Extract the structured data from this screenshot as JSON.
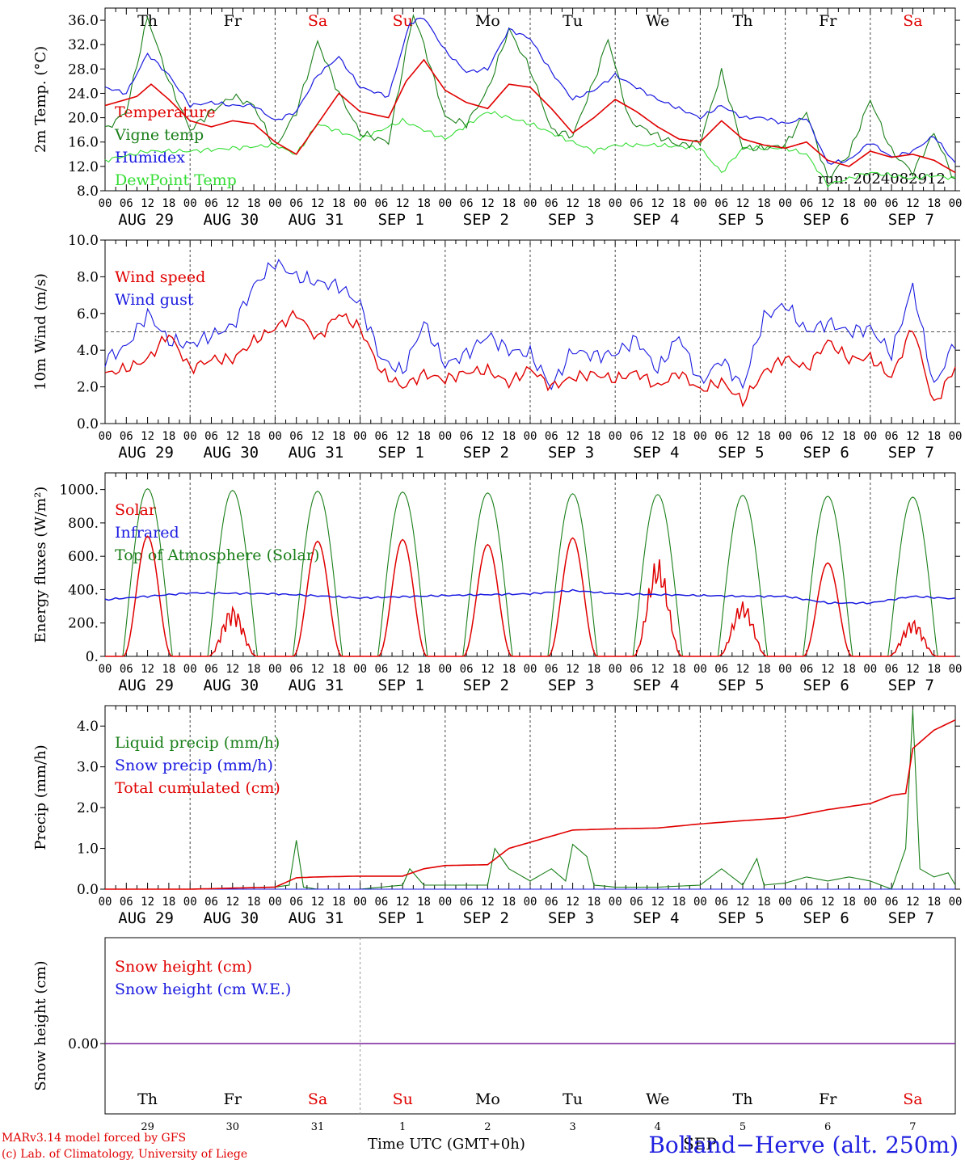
{
  "colors": {
    "red": "#e00000",
    "green": "#1a7f1a",
    "blue": "#1a1ae0",
    "lightgreen": "#33dd33",
    "purple": "#7a1f9a",
    "dash": "#555555"
  },
  "days": [
    "Th",
    "Fr",
    "Sa",
    "Su",
    "Mo",
    "Tu",
    "We",
    "Th",
    "Fr",
    "Sa"
  ],
  "weekend_days": [
    "Sa",
    "Su"
  ],
  "dates": [
    "AUG 29",
    "AUG 30",
    "AUG 31",
    "SEP  1",
    "SEP  2",
    "SEP  3",
    "SEP  4",
    "SEP  5",
    "SEP  6",
    "SEP  7"
  ],
  "day_numbers": [
    "29",
    "30",
    "31",
    "1",
    "2",
    "3",
    "4",
    "5",
    "6",
    "7"
  ],
  "hour_labels": [
    "00",
    "06",
    "12",
    "18"
  ],
  "final_hour_label": "00",
  "panels": [
    {
      "id": "temperature",
      "ylabel": "2m Temp. (°C)",
      "yticks": [
        "8.0",
        "12.0",
        "16.0",
        "20.0",
        "24.0",
        "28.0",
        "32.0",
        "36.0"
      ],
      "ylim": [
        8,
        38
      ],
      "legend": [
        {
          "label": "Temperature",
          "color": "red"
        },
        {
          "label": "Vigne temp",
          "color": "green"
        },
        {
          "label": "Humidex",
          "color": "blue"
        },
        {
          "label": "DewPoint Temp",
          "color": "lightgreen"
        }
      ],
      "note": "run: 2024082912"
    },
    {
      "id": "wind",
      "ylabel": "10m Wind (m/s)",
      "yticks": [
        "0.0",
        "2.0",
        "4.0",
        "6.0",
        "8.0",
        "10.0"
      ],
      "ylim": [
        0,
        10
      ],
      "legend": [
        {
          "label": "Wind speed",
          "color": "red"
        },
        {
          "label": "Wind gust",
          "color": "blue"
        }
      ],
      "hline": 5
    },
    {
      "id": "energy",
      "ylabel": "Energy fluxes (W/m²)",
      "yticks": [
        "0.",
        "200.",
        "400.",
        "600.",
        "800.",
        "1000."
      ],
      "ylim": [
        0,
        1100
      ],
      "legend": [
        {
          "label": "Solar",
          "color": "red"
        },
        {
          "label": "Infrared",
          "color": "blue"
        },
        {
          "label": "Top of Atmosphere (Solar)",
          "color": "green"
        }
      ]
    },
    {
      "id": "precip",
      "ylabel": "Precip (mm/h)",
      "yticks": [
        "0.0",
        "1.0",
        "2.0",
        "3.0",
        "4.0"
      ],
      "ylim": [
        0,
        4.5
      ],
      "legend": [
        {
          "label": "Liquid precip (mm/h)",
          "color": "green"
        },
        {
          "label": "Snow precip (mm/h)",
          "color": "blue"
        },
        {
          "label": "Total cumulated (cm)",
          "color": "red"
        }
      ]
    },
    {
      "id": "snow",
      "ylabel": "Snow height (cm)",
      "yticks": [
        "0.00"
      ],
      "legend": [
        {
          "label": "Snow height (cm)",
          "color": "red"
        },
        {
          "label": "Snow height (cm W.E.)",
          "color": "blue"
        }
      ]
    }
  ],
  "footer": {
    "model": "MARv3.14 model forced by GFS",
    "lab": "(c) Lab. of Climatology, University of Liege",
    "xlabel": "Time UTC (GMT+0h)",
    "month": "SEP",
    "station": "Bolland−Herve (alt. 250m)"
  },
  "chart_data": [
    {
      "type": "line",
      "title": "",
      "ylabel": "2m Temp. (°C)",
      "ylim": [
        8,
        38
      ],
      "x_unit": "hours since AUG 29 00 UTC",
      "series": [
        {
          "name": "Temperature",
          "x": [
            0,
            9,
            13,
            18,
            24,
            30,
            36,
            42,
            48,
            54,
            60,
            66,
            72,
            80,
            85,
            90,
            96,
            102,
            108,
            114,
            120,
            126,
            132,
            138,
            144,
            150,
            156,
            162,
            168,
            174,
            180,
            186,
            192,
            198,
            204,
            210,
            216,
            222,
            228,
            234,
            240
          ],
          "values": [
            22,
            23.5,
            25.5,
            23,
            19.5,
            18.5,
            19.5,
            19,
            16,
            14,
            19,
            24,
            21,
            20,
            26,
            29.5,
            24.5,
            22.5,
            21.5,
            25.5,
            25,
            21.5,
            17.5,
            20,
            23,
            21,
            18.5,
            16.5,
            16,
            19.5,
            16.5,
            15.5,
            15,
            16,
            13,
            12,
            14.5,
            13.5,
            14,
            13,
            11
          ]
        },
        {
          "name": "Vigne temp",
          "x": [
            0,
            6,
            12,
            18,
            24,
            30,
            36,
            42,
            48,
            54,
            60,
            66,
            72,
            80,
            87,
            90,
            96,
            102,
            108,
            114,
            120,
            126,
            132,
            138,
            142,
            148,
            156,
            162,
            168,
            174,
            180,
            186,
            192,
            198,
            204,
            210,
            216,
            222,
            228,
            234,
            240
          ],
          "values": [
            18,
            21,
            36.5,
            26,
            18,
            21,
            23.5,
            22,
            15,
            21,
            32.5,
            24,
            17.5,
            16,
            37,
            32,
            20,
            19,
            24.5,
            34.5,
            28,
            18,
            17,
            26,
            33,
            19.5,
            17,
            15.5,
            16,
            27.5,
            15,
            15,
            15.5,
            21,
            10,
            14,
            23,
            14.5,
            11,
            17.5,
            9.5
          ]
        },
        {
          "name": "Humidex",
          "x": [
            0,
            6,
            12,
            18,
            24,
            30,
            36,
            42,
            48,
            54,
            60,
            66,
            72,
            80,
            86,
            90,
            96,
            102,
            108,
            114,
            120,
            126,
            132,
            138,
            144,
            150,
            156,
            162,
            168,
            174,
            180,
            186,
            192,
            198,
            204,
            210,
            216,
            222,
            228,
            234,
            240
          ],
          "values": [
            25,
            24,
            30.5,
            27,
            22,
            22.5,
            22,
            22,
            19.5,
            21,
            27,
            30,
            25,
            23.5,
            35.5,
            36.5,
            31,
            27.5,
            28,
            34.5,
            33,
            27.5,
            23,
            24.5,
            27,
            25,
            23,
            21.5,
            20,
            22,
            20,
            20,
            19,
            20,
            12.5,
            13,
            16,
            13.5,
            14.5,
            17,
            12.5
          ]
        },
        {
          "name": "DewPoint Temp",
          "x": [
            0,
            12,
            24,
            36,
            48,
            54,
            60,
            72,
            84,
            96,
            108,
            120,
            132,
            138,
            144,
            156,
            168,
            174,
            180,
            192,
            198,
            204,
            210,
            216,
            222,
            228,
            234,
            240
          ],
          "values": [
            13,
            14.5,
            14.5,
            15,
            15.5,
            14,
            19,
            16.5,
            19.5,
            16.5,
            21,
            19,
            16,
            14.5,
            15.5,
            15.5,
            15,
            11,
            15,
            15,
            14,
            9,
            10,
            11,
            10.5,
            10,
            10.5,
            10
          ]
        }
      ]
    },
    {
      "type": "line",
      "title": "",
      "ylabel": "10m Wind (m/s)",
      "ylim": [
        0,
        10
      ],
      "x_unit": "hours since AUG 29 00 UTC",
      "series": [
        {
          "name": "Wind speed",
          "x": [
            0,
            6,
            12,
            18,
            24,
            30,
            36,
            42,
            48,
            54,
            60,
            66,
            72,
            78,
            84,
            90,
            96,
            102,
            108,
            114,
            120,
            126,
            132,
            138,
            144,
            150,
            156,
            162,
            168,
            174,
            180,
            186,
            192,
            198,
            204,
            210,
            216,
            222,
            228,
            234,
            240
          ],
          "values": [
            2.7,
            3.0,
            3.5,
            4.9,
            3.0,
            3.5,
            3.5,
            4.5,
            5.2,
            6.0,
            4.6,
            6.0,
            5.2,
            2.8,
            2.0,
            2.7,
            2.4,
            2.8,
            2.9,
            2.2,
            3.0,
            2.0,
            2.5,
            2.7,
            2.4,
            2.8,
            2.0,
            2.8,
            1.8,
            2.3,
            1.2,
            2.8,
            3.6,
            3.0,
            4.5,
            3.5,
            3.6,
            2.5,
            5.3,
            1.0,
            3.1
          ]
        },
        {
          "name": "Wind gust",
          "x": [
            0,
            6,
            12,
            18,
            24,
            30,
            36,
            42,
            48,
            54,
            60,
            66,
            72,
            78,
            84,
            90,
            96,
            102,
            108,
            114,
            120,
            126,
            132,
            138,
            144,
            150,
            156,
            162,
            168,
            174,
            180,
            186,
            192,
            198,
            204,
            210,
            216,
            222,
            228,
            234,
            240
          ],
          "values": [
            3.5,
            4.2,
            6.0,
            4.5,
            4.3,
            4.8,
            5.3,
            7.5,
            8.8,
            8.0,
            7.7,
            7.5,
            6.5,
            3.5,
            2.8,
            5.5,
            3.2,
            3.8,
            4.8,
            4.0,
            3.8,
            2.0,
            4.0,
            3.7,
            3.8,
            4.6,
            2.9,
            4.8,
            2.2,
            3.5,
            2.0,
            5.8,
            6.5,
            5.0,
            5.5,
            5.0,
            5.2,
            3.8,
            7.5,
            2.0,
            4.5
          ]
        }
      ]
    },
    {
      "type": "line",
      "title": "",
      "ylabel": "Energy fluxes (W/m²)",
      "ylim": [
        0,
        1100
      ],
      "x_unit": "hours since AUG 29 00 UTC",
      "series": [
        {
          "name": "Solar",
          "day_peaks": [
            720,
            300,
            690,
            700,
            670,
            710,
            590,
            330,
            560,
            220
          ]
        },
        {
          "name": "Infrared",
          "x": [
            0,
            24,
            48,
            72,
            96,
            120,
            132,
            144,
            168,
            180,
            192,
            204,
            216,
            228,
            240
          ],
          "values": [
            340,
            380,
            375,
            350,
            365,
            375,
            395,
            375,
            365,
            360,
            360,
            320,
            320,
            360,
            345
          ]
        },
        {
          "name": "Top of Atmosphere (Solar)",
          "day_peaks": [
            1005,
            995,
            990,
            985,
            980,
            975,
            970,
            965,
            960,
            955
          ]
        }
      ]
    },
    {
      "type": "line",
      "title": "",
      "ylabel": "Precip (mm/h)",
      "ylim": [
        0,
        4.5
      ],
      "x_unit": "hours since AUG 29 00 UTC",
      "series": [
        {
          "name": "Liquid precip (mm/h)",
          "x": [
            0,
            24,
            48,
            52,
            54,
            56,
            60,
            72,
            84,
            86,
            90,
            96,
            108,
            110,
            114,
            120,
            126,
            130,
            132,
            136,
            138,
            144,
            156,
            168,
            174,
            180,
            184,
            186,
            192,
            198,
            204,
            210,
            216,
            222,
            226,
            228,
            230,
            234,
            238,
            240
          ],
          "values": [
            0,
            0,
            0.05,
            0.1,
            1.2,
            0.05,
            0,
            0,
            0.1,
            0.5,
            0.1,
            0.1,
            0.1,
            1.0,
            0.5,
            0.2,
            0.5,
            0.2,
            1.1,
            0.8,
            0.1,
            0.05,
            0.05,
            0.1,
            0.5,
            0.1,
            0.75,
            0.1,
            0.15,
            0.3,
            0.2,
            0.3,
            0.2,
            0,
            1.0,
            4.4,
            0.5,
            0.3,
            0.4,
            0.1
          ]
        },
        {
          "name": "Snow precip (mm/h)",
          "x": [
            0,
            240
          ],
          "values": [
            0,
            0
          ]
        },
        {
          "name": "Total cumulated (cm)",
          "x": [
            0,
            24,
            48,
            54,
            60,
            72,
            84,
            90,
            96,
            108,
            114,
            120,
            126,
            132,
            144,
            156,
            168,
            180,
            192,
            198,
            204,
            216,
            222,
            226,
            228,
            234,
            240
          ],
          "values": [
            0,
            0,
            0.05,
            0.28,
            0.3,
            0.32,
            0.32,
            0.5,
            0.58,
            0.6,
            1.0,
            1.15,
            1.3,
            1.45,
            1.48,
            1.5,
            1.6,
            1.68,
            1.75,
            1.85,
            1.95,
            2.1,
            2.3,
            2.35,
            3.45,
            3.9,
            4.15
          ]
        }
      ]
    },
    {
      "type": "line",
      "title": "",
      "ylabel": "Snow height (cm)",
      "x_unit": "hours since AUG 29 00 UTC",
      "series": [
        {
          "name": "Snow height (cm)",
          "x": [
            0,
            240
          ],
          "values": [
            0,
            0
          ]
        },
        {
          "name": "Snow height (cm W.E.)",
          "x": [
            0,
            240
          ],
          "values": [
            0,
            0
          ]
        }
      ]
    }
  ]
}
